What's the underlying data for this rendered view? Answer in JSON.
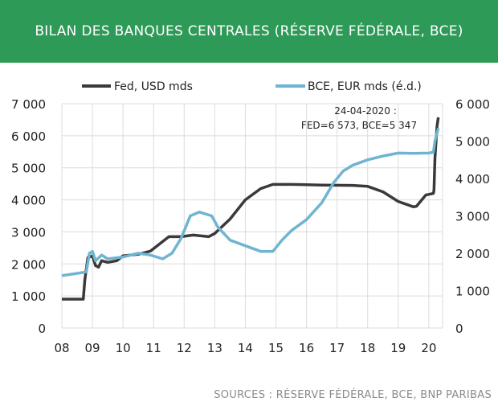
{
  "header": {
    "title": "BILAN DES BANQUES CENTRALES (RÉSERVE FÉDÉRALE, BCE)"
  },
  "footer": {
    "source": "SOURCES : RÉSERVE FÉDÉRALE, BCE, BNP PARIBAS"
  },
  "colors": {
    "header_bg": "#2e9a57",
    "fed": "#3a3a3a",
    "bce": "#6fb5d2",
    "grid": "#dcdcdc"
  },
  "chart_data": {
    "type": "line",
    "title": "BILAN DES BANQUES CENTRALES (RÉSERVE FÉDÉRALE, BCE)",
    "xlabel": "",
    "ylabel": "",
    "ylabel_right": "",
    "x_ticks": [
      "08",
      "09",
      "10",
      "11",
      "12",
      "13",
      "14",
      "15",
      "16",
      "17",
      "18",
      "19",
      "20"
    ],
    "x_tick_values": [
      2008,
      2009,
      2010,
      2011,
      2012,
      2013,
      2014,
      2015,
      2016,
      2017,
      2018,
      2019,
      2020
    ],
    "xlim": [
      2008,
      2020.45
    ],
    "ylim_left": [
      0,
      7000
    ],
    "y_ticks_left": [
      "0",
      "1 000",
      "2 000",
      "3 000",
      "4 000",
      "5 000",
      "6 000",
      "7 000"
    ],
    "ylim_right": [
      0,
      6000
    ],
    "y_ticks_right": [
      "0",
      "1 000",
      "2 000",
      "3 000",
      "4 000",
      "5 000",
      "6 000"
    ],
    "grid": true,
    "legend_position": "top",
    "annotation": {
      "line1": "24-04-2020 :",
      "line2": "FED=6 573, BCE=5 347"
    },
    "series": [
      {
        "name": "Fed, USD mds",
        "axis": "left",
        "x": [
          2008.0,
          2008.7,
          2008.75,
          2008.85,
          2009.0,
          2009.1,
          2009.2,
          2009.3,
          2009.5,
          2009.8,
          2010.0,
          2010.5,
          2010.9,
          2011.3,
          2011.5,
          2011.9,
          2012.3,
          2012.8,
          2013.0,
          2013.5,
          2014.0,
          2014.5,
          2014.9,
          2015.5,
          2016.5,
          2017.5,
          2018.0,
          2018.5,
          2019.0,
          2019.5,
          2019.6,
          2019.9,
          2020.15,
          2020.17,
          2020.2,
          2020.27,
          2020.31
        ],
        "y": [
          900,
          900,
          1500,
          2200,
          2250,
          1950,
          1900,
          2100,
          2050,
          2100,
          2250,
          2300,
          2400,
          2700,
          2850,
          2850,
          2900,
          2850,
          2950,
          3400,
          4000,
          4350,
          4480,
          4480,
          4460,
          4450,
          4420,
          4250,
          3950,
          3780,
          3800,
          4150,
          4200,
          4300,
          5300,
          6300,
          6573
        ]
      },
      {
        "name": "BCE, EUR mds (é.d.)",
        "axis": "right",
        "x": [
          2008.0,
          2008.8,
          2008.9,
          2009.0,
          2009.1,
          2009.3,
          2009.5,
          2010.0,
          2010.5,
          2010.9,
          2011.3,
          2011.6,
          2011.9,
          2012.1,
          2012.2,
          2012.5,
          2012.9,
          2013.1,
          2013.5,
          2014.0,
          2014.5,
          2014.9,
          2015.2,
          2015.5,
          2016.0,
          2016.5,
          2016.9,
          2017.2,
          2017.5,
          2018.0,
          2018.5,
          2019.0,
          2019.5,
          2020.0,
          2020.15,
          2020.2,
          2020.31
        ],
        "y": [
          1400,
          1500,
          2000,
          2050,
          1800,
          1950,
          1850,
          1900,
          2000,
          1950,
          1850,
          2000,
          2400,
          2800,
          3000,
          3100,
          3000,
          2700,
          2350,
          2200,
          2050,
          2050,
          2350,
          2600,
          2900,
          3350,
          3900,
          4200,
          4350,
          4500,
          4600,
          4680,
          4670,
          4680,
          4700,
          5000,
          5347
        ]
      }
    ]
  }
}
